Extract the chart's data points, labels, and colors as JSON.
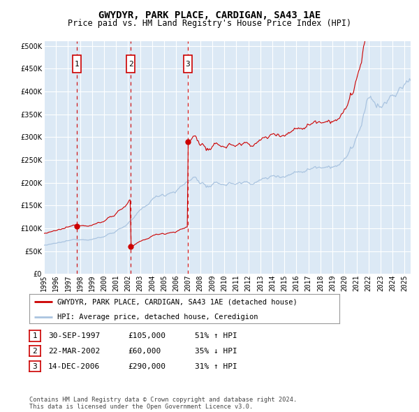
{
  "title": "GWYDYR, PARK PLACE, CARDIGAN, SA43 1AE",
  "subtitle": "Price paid vs. HM Land Registry's House Price Index (HPI)",
  "footer": "Contains HM Land Registry data © Crown copyright and database right 2024.\nThis data is licensed under the Open Government Licence v3.0.",
  "legend_line1": "GWYDYR, PARK PLACE, CARDIGAN, SA43 1AE (detached house)",
  "legend_line2": "HPI: Average price, detached house, Ceredigion",
  "sales": [
    {
      "label": "1",
      "date_num": 1997.75,
      "price": 105000,
      "note": "30-SEP-1997",
      "amount": "£105,000",
      "pct": "51% ↑ HPI"
    },
    {
      "label": "2",
      "date_num": 2002.23,
      "price": 60000,
      "note": "22-MAR-2002",
      "amount": "£60,000",
      "pct": "35% ↓ HPI"
    },
    {
      "label": "3",
      "date_num": 2006.96,
      "price": 290000,
      "note": "14-DEC-2006",
      "amount": "£290,000",
      "pct": "31% ↑ HPI"
    }
  ],
  "ylim": [
    0,
    510000
  ],
  "xlim_start": 1995.0,
  "xlim_end": 2025.5,
  "background_color": "#dce9f5",
  "grid_color": "#ffffff",
  "hpi_color": "#aac4e0",
  "sales_color": "#cc0000",
  "dashed_color": "#cc0000",
  "title_fontsize": 10,
  "subtitle_fontsize": 8.5,
  "tick_label_fontsize": 7
}
